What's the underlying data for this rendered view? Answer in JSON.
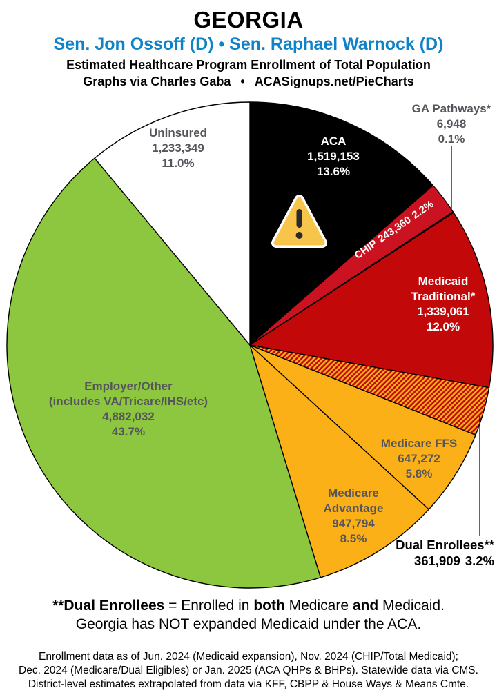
{
  "header": {
    "state": "GEORGIA",
    "senators": "Sen. Jon Ossoff (D) • Sen. Raphael Warnock (D)",
    "subtitle": "Estimated Healthcare Program Enrollment of Total Population",
    "credit_left": "Graphs via Charles Gaba",
    "credit_bullet": "•",
    "credit_right": "ACASignups.net/PieCharts"
  },
  "colors": {
    "accent_blue": "#1082C8",
    "slice_black": "#000000",
    "slice_chip_red": "#CB1220",
    "slice_medicaid_red": "#C20808",
    "slice_amber": "#FBB018",
    "slice_green": "#8DC63F",
    "slice_white": "#FFFFFF",
    "slice_outline": "#000000",
    "dark_label_gray": "#55565B",
    "warning_gold": "#F8C54B"
  },
  "chart_data": {
    "type": "pie",
    "title": "Estimated Healthcare Program Enrollment of Total Population",
    "start": "12 o'clock",
    "direction": "clockwise",
    "legend": "none (labels on/beside slices)",
    "total_value": 11180878,
    "slices": [
      {
        "label": "ACA",
        "value": 1519153,
        "value_text": "1,519,153",
        "pct_text": "13.6%",
        "color": "#000000",
        "label_color": "#FFFFFF"
      },
      {
        "label": "CHIP",
        "value": 243360,
        "value_text": "243,360",
        "pct_text": "2.2%",
        "color": "#CB1220",
        "label_color": "#FFFFFF"
      },
      {
        "label": "GA Pathways*",
        "value": 6948,
        "value_text": "6,948",
        "pct_text": "0.1%",
        "color": "#000000",
        "label_color": "#55565B"
      },
      {
        "label": "Medicaid Traditional*",
        "label_lines": [
          "Medicaid",
          "Traditional*"
        ],
        "value": 1339061,
        "value_text": "1,339,061",
        "pct_text": "12.0%",
        "color": "#C20808",
        "label_color": "#FFFFFF"
      },
      {
        "label": "Dual Enrollees**",
        "value": 361909,
        "value_text": "361,909",
        "pct_text": "3.2%",
        "color": "#FBB018",
        "hatch": true,
        "hatch_color": "#C20808",
        "label_color": "#000000"
      },
      {
        "label": "Medicare FFS",
        "value": 647272,
        "value_text": "647,272",
        "pct_text": "5.8%",
        "color": "#FBB018",
        "label_color": "#55565B"
      },
      {
        "label": "Medicare Advantage",
        "label_lines": [
          "Medicare",
          "Advantage"
        ],
        "value": 947794,
        "value_text": "947,794",
        "pct_text": "8.5%",
        "color": "#FBB018",
        "label_color": "#55565B"
      },
      {
        "label": "Employer/Other",
        "sublabel": "(includes VA/Tricare/IHS/etc)",
        "value": 4882032,
        "value_text": "4,882,032",
        "pct_text": "43.7%",
        "color": "#8DC63F",
        "label_color": "#55565B"
      },
      {
        "label": "Uninsured",
        "value": 1233349,
        "value_text": "1,233,349",
        "pct_text": "11.0%",
        "color": "#FFFFFF",
        "label_color": "#55565B"
      }
    ]
  },
  "footnote": {
    "line1_parts": [
      "**Dual Enrollees",
      " = Enrolled in ",
      "both",
      " Medicare ",
      "and",
      " Medicaid."
    ],
    "line2": "Georgia has NOT expanded Medicaid under the ACA.",
    "fine_print": [
      "Enrollment data as of Jun. 2024 (Medicaid expansion), Nov. 2024 (CHIP/Total Medicaid);",
      "Dec. 2024 (Medicare/Dual Eligibles) or Jan. 2025 (ACA QHPs & BHPs). Statewide data via CMS.",
      "District-level estimates extrapolated from data via KFF, CBPP & House Ways & Means Cmte."
    ]
  }
}
